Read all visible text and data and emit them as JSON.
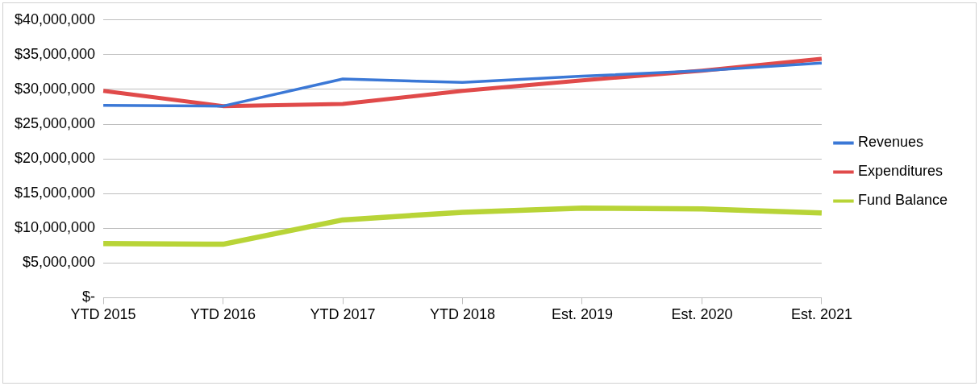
{
  "chart_data": {
    "type": "line",
    "categories": [
      "YTD 2015",
      "YTD 2016",
      "YTD 2017",
      "YTD 2018",
      "Est. 2019",
      "Est. 2020",
      "Est. 2021"
    ],
    "series": [
      {
        "name": "Revenues",
        "color": "#3b78d6",
        "values": [
          27700000,
          27600000,
          31500000,
          31000000,
          31900000,
          32700000,
          33800000
        ]
      },
      {
        "name": "Expenditures",
        "color": "#e04a4a",
        "values": [
          29800000,
          27600000,
          27900000,
          29800000,
          31300000,
          32700000,
          34400000
        ]
      },
      {
        "name": "Fund Balance",
        "color": "#b8d437",
        "values": [
          7800000,
          7700000,
          11200000,
          12300000,
          12900000,
          12800000,
          12200000
        ]
      }
    ],
    "ylim": [
      0,
      40000000
    ],
    "yticks": [
      {
        "value": 0,
        "label": "$-"
      },
      {
        "value": 5000000,
        "label": "$5,000,000"
      },
      {
        "value": 10000000,
        "label": "$10,000,000"
      },
      {
        "value": 15000000,
        "label": "$15,000,000"
      },
      {
        "value": 20000000,
        "label": "$20,000,000"
      },
      {
        "value": 25000000,
        "label": "$25,000,000"
      },
      {
        "value": 30000000,
        "label": "$30,000,000"
      },
      {
        "value": 35000000,
        "label": "$35,000,000"
      },
      {
        "value": 40000000,
        "label": "$40,000,000"
      }
    ],
    "grid": "y",
    "legend": "right",
    "marker": "none",
    "line_style": "solid"
  }
}
